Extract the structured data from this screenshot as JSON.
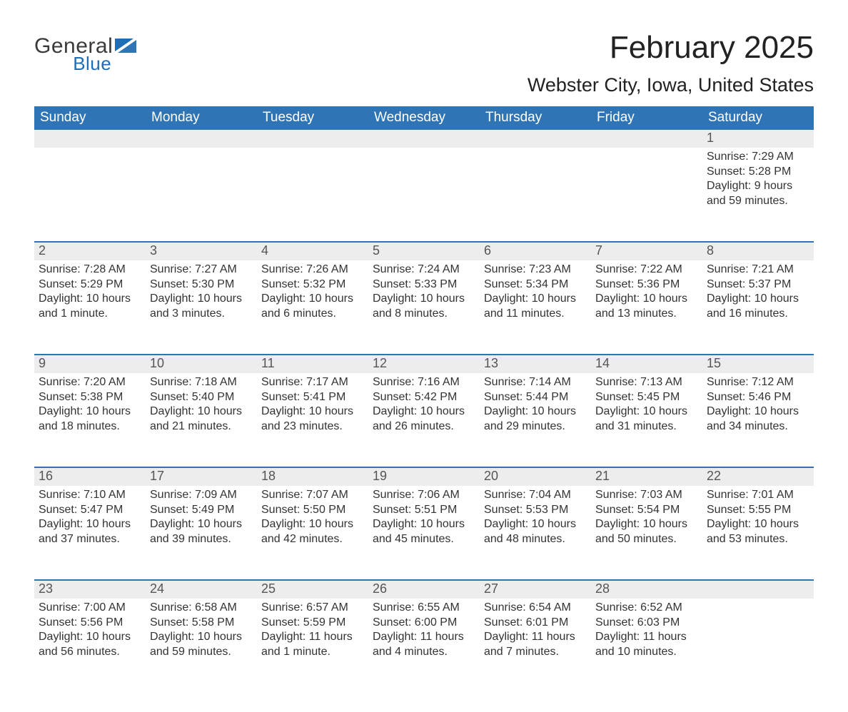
{
  "logo": {
    "line1": "General",
    "line2": "Blue"
  },
  "title": "February 2025",
  "location": "Webster City, Iowa, United States",
  "colors": {
    "header_blue": "#2f75b5",
    "accent_blue": "#1f6db5",
    "daynum_row": "#ededed",
    "border_blue": "#2f75b5",
    "background": "#ffffff",
    "text": "#333333"
  },
  "weekdays": [
    "Sunday",
    "Monday",
    "Tuesday",
    "Wednesday",
    "Thursday",
    "Friday",
    "Saturday"
  ],
  "weeks": [
    [
      null,
      null,
      null,
      null,
      null,
      null,
      {
        "day": "1",
        "sunrise": "Sunrise: 7:29 AM",
        "sunset": "Sunset: 5:28 PM",
        "daylight": "Daylight: 9 hours and 59 minutes."
      }
    ],
    [
      {
        "day": "2",
        "sunrise": "Sunrise: 7:28 AM",
        "sunset": "Sunset: 5:29 PM",
        "daylight": "Daylight: 10 hours and 1 minute."
      },
      {
        "day": "3",
        "sunrise": "Sunrise: 7:27 AM",
        "sunset": "Sunset: 5:30 PM",
        "daylight": "Daylight: 10 hours and 3 minutes."
      },
      {
        "day": "4",
        "sunrise": "Sunrise: 7:26 AM",
        "sunset": "Sunset: 5:32 PM",
        "daylight": "Daylight: 10 hours and 6 minutes."
      },
      {
        "day": "5",
        "sunrise": "Sunrise: 7:24 AM",
        "sunset": "Sunset: 5:33 PM",
        "daylight": "Daylight: 10 hours and 8 minutes."
      },
      {
        "day": "6",
        "sunrise": "Sunrise: 7:23 AM",
        "sunset": "Sunset: 5:34 PM",
        "daylight": "Daylight: 10 hours and 11 minutes."
      },
      {
        "day": "7",
        "sunrise": "Sunrise: 7:22 AM",
        "sunset": "Sunset: 5:36 PM",
        "daylight": "Daylight: 10 hours and 13 minutes."
      },
      {
        "day": "8",
        "sunrise": "Sunrise: 7:21 AM",
        "sunset": "Sunset: 5:37 PM",
        "daylight": "Daylight: 10 hours and 16 minutes."
      }
    ],
    [
      {
        "day": "9",
        "sunrise": "Sunrise: 7:20 AM",
        "sunset": "Sunset: 5:38 PM",
        "daylight": "Daylight: 10 hours and 18 minutes."
      },
      {
        "day": "10",
        "sunrise": "Sunrise: 7:18 AM",
        "sunset": "Sunset: 5:40 PM",
        "daylight": "Daylight: 10 hours and 21 minutes."
      },
      {
        "day": "11",
        "sunrise": "Sunrise: 7:17 AM",
        "sunset": "Sunset: 5:41 PM",
        "daylight": "Daylight: 10 hours and 23 minutes."
      },
      {
        "day": "12",
        "sunrise": "Sunrise: 7:16 AM",
        "sunset": "Sunset: 5:42 PM",
        "daylight": "Daylight: 10 hours and 26 minutes."
      },
      {
        "day": "13",
        "sunrise": "Sunrise: 7:14 AM",
        "sunset": "Sunset: 5:44 PM",
        "daylight": "Daylight: 10 hours and 29 minutes."
      },
      {
        "day": "14",
        "sunrise": "Sunrise: 7:13 AM",
        "sunset": "Sunset: 5:45 PM",
        "daylight": "Daylight: 10 hours and 31 minutes."
      },
      {
        "day": "15",
        "sunrise": "Sunrise: 7:12 AM",
        "sunset": "Sunset: 5:46 PM",
        "daylight": "Daylight: 10 hours and 34 minutes."
      }
    ],
    [
      {
        "day": "16",
        "sunrise": "Sunrise: 7:10 AM",
        "sunset": "Sunset: 5:47 PM",
        "daylight": "Daylight: 10 hours and 37 minutes."
      },
      {
        "day": "17",
        "sunrise": "Sunrise: 7:09 AM",
        "sunset": "Sunset: 5:49 PM",
        "daylight": "Daylight: 10 hours and 39 minutes."
      },
      {
        "day": "18",
        "sunrise": "Sunrise: 7:07 AM",
        "sunset": "Sunset: 5:50 PM",
        "daylight": "Daylight: 10 hours and 42 minutes."
      },
      {
        "day": "19",
        "sunrise": "Sunrise: 7:06 AM",
        "sunset": "Sunset: 5:51 PM",
        "daylight": "Daylight: 10 hours and 45 minutes."
      },
      {
        "day": "20",
        "sunrise": "Sunrise: 7:04 AM",
        "sunset": "Sunset: 5:53 PM",
        "daylight": "Daylight: 10 hours and 48 minutes."
      },
      {
        "day": "21",
        "sunrise": "Sunrise: 7:03 AM",
        "sunset": "Sunset: 5:54 PM",
        "daylight": "Daylight: 10 hours and 50 minutes."
      },
      {
        "day": "22",
        "sunrise": "Sunrise: 7:01 AM",
        "sunset": "Sunset: 5:55 PM",
        "daylight": "Daylight: 10 hours and 53 minutes."
      }
    ],
    [
      {
        "day": "23",
        "sunrise": "Sunrise: 7:00 AM",
        "sunset": "Sunset: 5:56 PM",
        "daylight": "Daylight: 10 hours and 56 minutes."
      },
      {
        "day": "24",
        "sunrise": "Sunrise: 6:58 AM",
        "sunset": "Sunset: 5:58 PM",
        "daylight": "Daylight: 10 hours and 59 minutes."
      },
      {
        "day": "25",
        "sunrise": "Sunrise: 6:57 AM",
        "sunset": "Sunset: 5:59 PM",
        "daylight": "Daylight: 11 hours and 1 minute."
      },
      {
        "day": "26",
        "sunrise": "Sunrise: 6:55 AM",
        "sunset": "Sunset: 6:00 PM",
        "daylight": "Daylight: 11 hours and 4 minutes."
      },
      {
        "day": "27",
        "sunrise": "Sunrise: 6:54 AM",
        "sunset": "Sunset: 6:01 PM",
        "daylight": "Daylight: 11 hours and 7 minutes."
      },
      {
        "day": "28",
        "sunrise": "Sunrise: 6:52 AM",
        "sunset": "Sunset: 6:03 PM",
        "daylight": "Daylight: 11 hours and 10 minutes."
      },
      null
    ]
  ]
}
